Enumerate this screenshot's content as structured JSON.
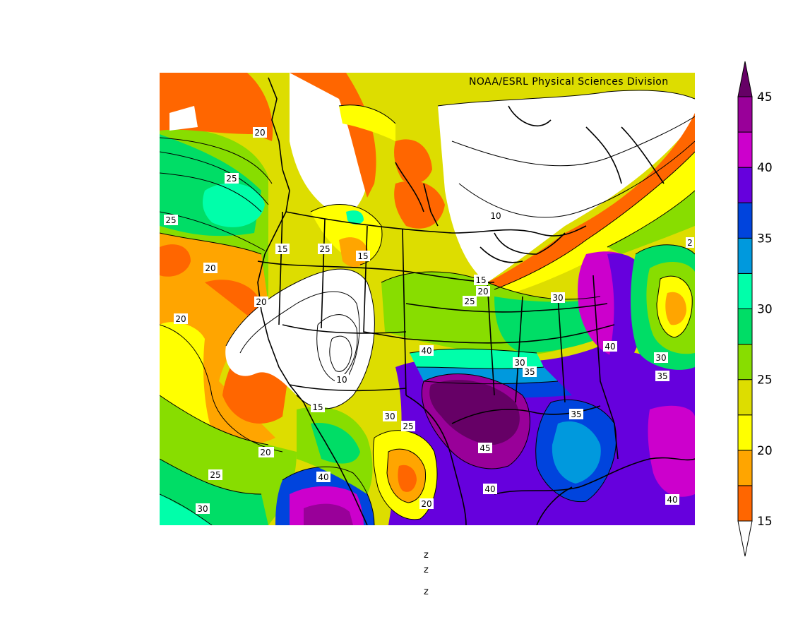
{
  "credit": "NOAA/ESRL Physical Sciences Division",
  "colorbar": {
    "ticks": [
      "15",
      "20",
      "25",
      "30",
      "35",
      "40",
      "45"
    ],
    "colors": [
      "#ffffff",
      "#ff6600",
      "#ffa500",
      "#ffff00",
      "#dddd00",
      "#88dd00",
      "#00dd66",
      "#00ffaa",
      "#0099dd",
      "#0044dd",
      "#6600dd",
      "#cc00cc",
      "#990099",
      "#660066"
    ]
  },
  "contour_labels": [
    "20",
    "25",
    "25",
    "20",
    "20",
    "20",
    "15",
    "25",
    "15",
    "15",
    "20",
    "25",
    "30",
    "10",
    "10",
    "40",
    "30",
    "35",
    "35",
    "40",
    "30",
    "35",
    "15",
    "30",
    "25",
    "20",
    "45",
    "40",
    "40",
    "20",
    "25",
    "40",
    "20",
    "30",
    "2"
  ],
  "axis_marks": [
    "z",
    "z",
    "z"
  ]
}
